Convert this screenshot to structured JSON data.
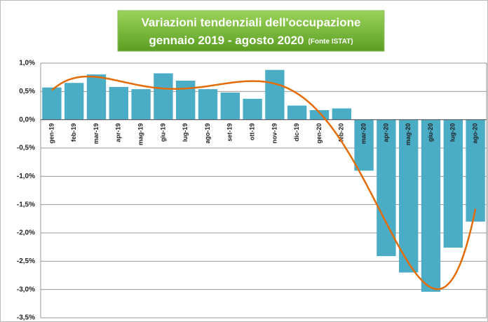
{
  "chart_data": {
    "type": "bar",
    "title": "Variazioni  tendenziali dell'occupazione",
    "subtitle": "gennaio 2019 -  agosto 2020",
    "source": "(Fonte ISTAT)",
    "categories": [
      "gen-19",
      "feb-19",
      "mar-19",
      "apr-19",
      "mag-19",
      "giu-19",
      "lug-19",
      "ago-19",
      "set-19",
      "ott-19",
      "nov-19",
      "dic-19",
      "gen-20",
      "feb-20",
      "mar-20",
      "apr-20",
      "mag-20",
      "giu-20",
      "lug-20",
      "ago-20"
    ],
    "values": [
      0.57,
      0.65,
      0.8,
      0.58,
      0.54,
      0.82,
      0.69,
      0.54,
      0.48,
      0.37,
      0.88,
      0.25,
      0.17,
      0.2,
      -0.9,
      -2.41,
      -2.7,
      -3.04,
      -2.26,
      -1.8
    ],
    "color": "#4bacc6",
    "ylim": [
      -3.5,
      1.0
    ],
    "yticks": [
      {
        "value": 1.0,
        "label": "1,0%"
      },
      {
        "value": 0.5,
        "label": "0,5%"
      },
      {
        "value": 0,
        "label": "0,0%"
      },
      {
        "value": -0.5,
        "label": "-0,5%"
      },
      {
        "value": -1.0,
        "label": "-1,0%"
      },
      {
        "value": -1.5,
        "label": "-1,5%"
      },
      {
        "value": -2.0,
        "label": "-2,0%"
      },
      {
        "value": -2.5,
        "label": "-2,5%"
      },
      {
        "value": -3.0,
        "label": "-3,0%"
      },
      {
        "value": -3.5,
        "label": "-3,5%"
      }
    ],
    "grid": true,
    "trendline": {
      "type": "polynomial",
      "order": 6,
      "color": "#e36c09"
    }
  }
}
